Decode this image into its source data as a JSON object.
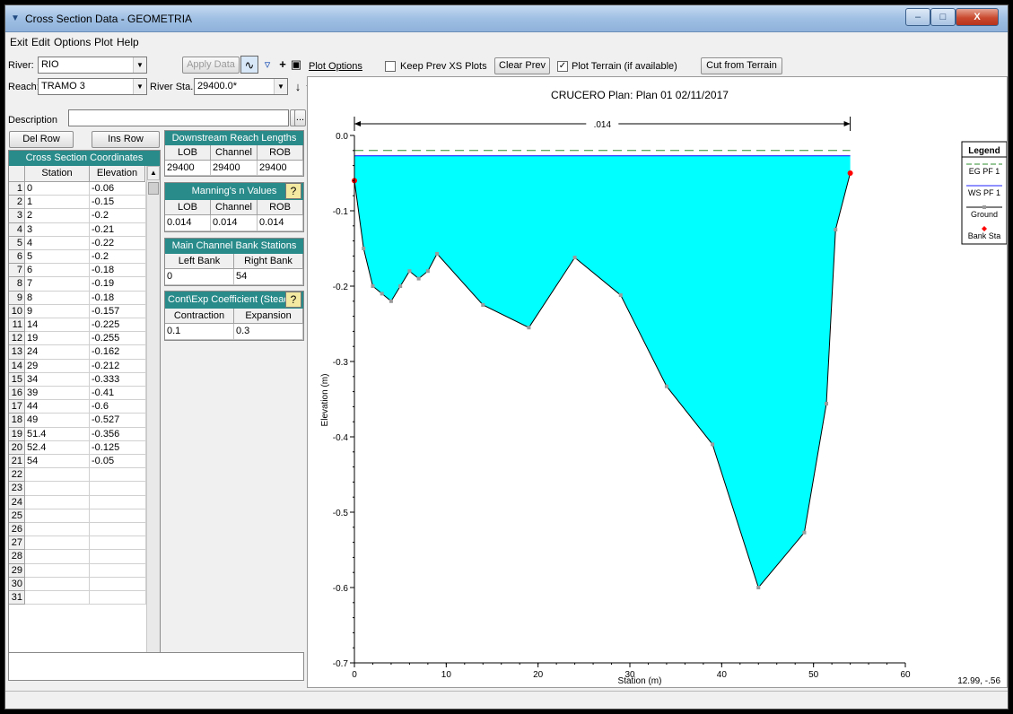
{
  "window": {
    "title": "Cross Section Data - GEOMETRIA",
    "min_label": "–",
    "max_label": "□",
    "close_label": "X"
  },
  "menu": {
    "items": [
      "Exit",
      "Edit",
      "Options",
      "Plot",
      "Help"
    ]
  },
  "river": {
    "label": "River:",
    "value": "RIO"
  },
  "reach": {
    "label": "Reach:",
    "value": "TRAMO 3"
  },
  "river_sta": {
    "label": "River Sta.:",
    "value": "29400.0*"
  },
  "description": {
    "label": "Description",
    "value": ""
  },
  "buttons": {
    "apply_data": "Apply Data",
    "del_row": "Del Row",
    "ins_row": "Ins Row",
    "ellipsis": "..."
  },
  "plot_toolbar": {
    "plot_options": "Plot Options",
    "keep_prev": "Keep Prev XS Plots",
    "keep_prev_checked": false,
    "clear_prev": "Clear Prev",
    "plot_terrain": "Plot Terrain (if available)",
    "plot_terrain_checked": true,
    "cut_from_terrain": "Cut from Terrain"
  },
  "coords": {
    "title": "Cross Section Coordinates",
    "headers": [
      "Station",
      "Elevation"
    ],
    "rows": [
      [
        "0",
        "-0.06"
      ],
      [
        "1",
        "-0.15"
      ],
      [
        "2",
        "-0.2"
      ],
      [
        "3",
        "-0.21"
      ],
      [
        "4",
        "-0.22"
      ],
      [
        "5",
        "-0.2"
      ],
      [
        "6",
        "-0.18"
      ],
      [
        "7",
        "-0.19"
      ],
      [
        "8",
        "-0.18"
      ],
      [
        "9",
        "-0.157"
      ],
      [
        "14",
        "-0.225"
      ],
      [
        "19",
        "-0.255"
      ],
      [
        "24",
        "-0.162"
      ],
      [
        "29",
        "-0.212"
      ],
      [
        "34",
        "-0.333"
      ],
      [
        "39",
        "-0.41"
      ],
      [
        "44",
        "-0.6"
      ],
      [
        "49",
        "-0.527"
      ],
      [
        "51.4",
        "-0.356"
      ],
      [
        "52.4",
        "-0.125"
      ],
      [
        "54",
        "-0.05"
      ],
      [
        "",
        ""
      ],
      [
        "",
        ""
      ],
      [
        "",
        ""
      ],
      [
        "",
        ""
      ],
      [
        "",
        ""
      ],
      [
        "",
        ""
      ],
      [
        "",
        ""
      ],
      [
        "",
        ""
      ],
      [
        "",
        ""
      ],
      [
        "",
        ""
      ]
    ]
  },
  "reach_lengths": {
    "title": "Downstream Reach Lengths",
    "headers": [
      "LOB",
      "Channel",
      "ROB"
    ],
    "values": [
      "29400",
      "29400",
      "29400"
    ]
  },
  "mannings": {
    "title": "Manning's n Values",
    "headers": [
      "LOB",
      "Channel",
      "ROB"
    ],
    "values": [
      "0.014",
      "0.014",
      "0.014"
    ]
  },
  "bank_stations": {
    "title": "Main Channel Bank Stations",
    "headers": [
      "Left Bank",
      "Right Bank"
    ],
    "values": [
      "0",
      "54"
    ]
  },
  "cont_exp": {
    "title": "Cont\\Exp Coefficient (Steady",
    "headers": [
      "Contraction",
      "Expansion"
    ],
    "values": [
      "0.1",
      "0.3"
    ]
  },
  "chart_data": {
    "type": "line",
    "title": "CRUCERO      Plan: Plan 01    02/11/2017",
    "xlabel": "Station (m)",
    "ylabel": "Elevation (m)",
    "xlim": [
      0,
      60
    ],
    "ylim": [
      -0.7,
      0.0
    ],
    "xticks": [
      0,
      10,
      20,
      30,
      40,
      50,
      60
    ],
    "yticks": [
      0.0,
      -0.1,
      -0.2,
      -0.3,
      -0.4,
      -0.5,
      -0.6,
      -0.7
    ],
    "ground": {
      "x": [
        0,
        1,
        2,
        3,
        4,
        5,
        6,
        7,
        8,
        9,
        14,
        19,
        24,
        29,
        34,
        39,
        44,
        49,
        51.4,
        52.4,
        54
      ],
      "y": [
        -0.06,
        -0.15,
        -0.2,
        -0.21,
        -0.22,
        -0.2,
        -0.18,
        -0.19,
        -0.18,
        -0.157,
        -0.225,
        -0.255,
        -0.162,
        -0.212,
        -0.333,
        -0.41,
        -0.6,
        -0.527,
        -0.356,
        -0.125,
        -0.05
      ]
    },
    "bank_stations": [
      {
        "x": 0,
        "y": -0.06
      },
      {
        "x": 54,
        "y": -0.05
      }
    ],
    "ws_elevation": -0.027,
    "eg_elevation": -0.02,
    "mannings_label": ".014",
    "mannings_span": [
      0,
      54
    ],
    "legend": {
      "title": "Legend",
      "placement": "right",
      "entries": [
        {
          "name": "EG PF 1",
          "color": "#2e8b2e",
          "style": "dashed"
        },
        {
          "name": "WS PF 1",
          "color": "#2020ff",
          "style": "solid"
        },
        {
          "name": "Ground",
          "color": "#000000",
          "style": "line-marker"
        },
        {
          "name": "Bank Sta",
          "color": "#ff0000",
          "style": "marker"
        }
      ]
    },
    "water_fill": "#00ffff",
    "cursor_readout": "12.99, -.56"
  }
}
